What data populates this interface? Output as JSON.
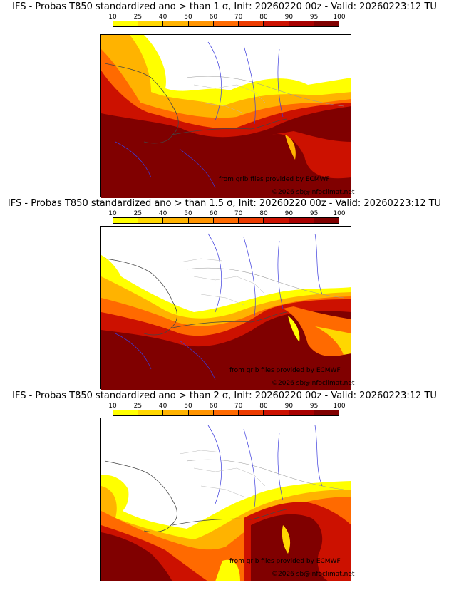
{
  "colorbar": {
    "ticks": [
      "10",
      "25",
      "40",
      "50",
      "60",
      "70",
      "80",
      "90",
      "95",
      "100"
    ],
    "colors": [
      "#ffff00",
      "#ffd700",
      "#ffb300",
      "#ff9400",
      "#ff6a00",
      "#ec3b00",
      "#cc1100",
      "#a80000",
      "#800000"
    ]
  },
  "panels": [
    {
      "title": "IFS - Probas T850  standardized ano > than 1 σ, Init: 20260220 00z - Valid: 20260223:12 TU",
      "credit1": "from grib files provided by ECMWF",
      "credit2": "©2026 sb@infoclimat.net"
    },
    {
      "title": "IFS - Probas T850  standardized ano > than 1.5 σ, Init: 20260220 00z - Valid: 20260223:12 TU",
      "credit1": "from grib files provided by ECMWF",
      "credit2": "©2026 sb@infoclimat.net"
    },
    {
      "title": "IFS - Probas T850  standardized ano > than 2 σ, Init: 20260220 00z - Valid: 20260223:12 TU",
      "credit1": "from grib files provided by ECMWF",
      "credit2": "©2026 sb@infoclimat.net"
    }
  ]
}
